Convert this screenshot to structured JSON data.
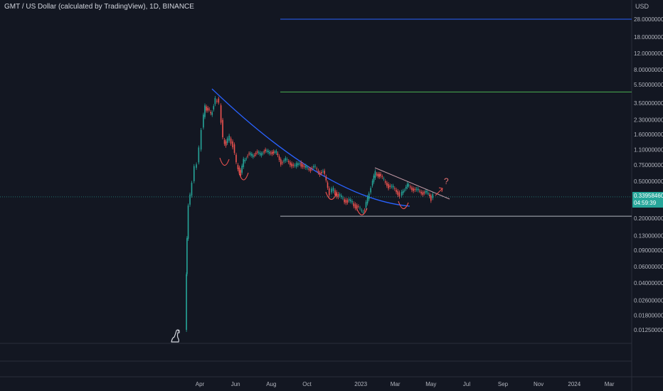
{
  "header": {
    "title": "GMT / US Dollar (calculated by TradingView), 1D, BINANCE",
    "unit": "USD"
  },
  "price_badge": {
    "price": "0.33958460",
    "countdown": "04:59:39",
    "color": "#26a69a"
  },
  "annotation": {
    "question_mark": "?"
  },
  "colors": {
    "background": "#131722",
    "up": "#26a69a",
    "down": "#ef5350",
    "resistance_high": "#2962ff",
    "resistance_mid": "#4caf50",
    "support": "#b2b5be",
    "curve": "#2962ff",
    "arcs": "#ef5350"
  },
  "chart_data": {
    "type": "line",
    "title": "GMT / US Dollar (calculated by TradingView), 1D, BINANCE",
    "ylabel": "USD",
    "yscale": "log",
    "ylim": [
      0.0095,
      34
    ],
    "y_ticks": [
      "28.00000000",
      "18.00000000",
      "12.00000000",
      "8.00000000",
      "5.50000000",
      "3.50000000",
      "2.30000000",
      "1.60000000",
      "1.10000000",
      "0.75000000",
      "0.50000000",
      "0.33958460",
      "0.20000000",
      "0.13000000",
      "0.09000000",
      "0.06000000",
      "0.04000000",
      "0.02600000",
      "0.01800000",
      "0.01250000"
    ],
    "x_ticks": [
      "Apr",
      "Jun",
      "Aug",
      "Oct",
      "2023",
      "Mar",
      "May",
      "Jul",
      "Sep",
      "Nov",
      "2024",
      "Mar"
    ],
    "series": [
      {
        "x": [
          "2022-03-09",
          "2022-03-10",
          "2022-03-12",
          "2022-03-15",
          "2022-03-18",
          "2022-03-22",
          "2022-03-26",
          "2022-03-30",
          "2022-04-03",
          "2022-04-07",
          "2022-04-12",
          "2022-04-17",
          "2022-04-22",
          "2022-04-27",
          "2022-04-30",
          "2022-05-03",
          "2022-05-07",
          "2022-05-10",
          "2022-05-13",
          "2022-05-18",
          "2022-05-24",
          "2022-05-30",
          "2022-06-05",
          "2022-06-12",
          "2022-06-17",
          "2022-06-24",
          "2022-07-01",
          "2022-07-08",
          "2022-07-15",
          "2022-07-22",
          "2022-07-29",
          "2022-08-05",
          "2022-08-12",
          "2022-08-20",
          "2022-08-28",
          "2022-09-05",
          "2022-09-13",
          "2022-09-21",
          "2022-09-29",
          "2022-10-07",
          "2022-10-15",
          "2022-10-23",
          "2022-10-31",
          "2022-11-08",
          "2022-11-12",
          "2022-11-18",
          "2022-11-26",
          "2022-12-04",
          "2022-12-12",
          "2022-12-20",
          "2022-12-28",
          "2023-01-05",
          "2023-01-10",
          "2023-01-15",
          "2023-01-21",
          "2023-01-28",
          "2023-02-04",
          "2023-02-12",
          "2023-02-20",
          "2023-02-28",
          "2023-03-08",
          "2023-03-12",
          "2023-03-17",
          "2023-03-24",
          "2023-04-01",
          "2023-04-09",
          "2023-04-17",
          "2023-04-24",
          "2023-05-01",
          "2023-05-04",
          "2023-05-08"
        ],
        "y": [
          0.0125,
          0.05,
          0.12,
          0.28,
          0.35,
          0.5,
          0.7,
          0.8,
          1.1,
          1.9,
          3.2,
          3.0,
          2.6,
          3.4,
          3.7,
          3.9,
          3.3,
          2.3,
          1.4,
          1.3,
          1.45,
          1.25,
          0.75,
          0.62,
          0.82,
          1.0,
          0.92,
          1.05,
          0.95,
          1.1,
          1.0,
          1.05,
          1.0,
          0.8,
          0.85,
          0.78,
          0.72,
          0.8,
          0.7,
          0.68,
          0.72,
          0.62,
          0.65,
          0.42,
          0.38,
          0.4,
          0.35,
          0.32,
          0.31,
          0.29,
          0.27,
          0.23,
          0.26,
          0.32,
          0.45,
          0.6,
          0.6,
          0.5,
          0.45,
          0.42,
          0.38,
          0.35,
          0.4,
          0.45,
          0.42,
          0.4,
          0.38,
          0.38,
          0.35,
          0.33,
          0.34
        ]
      }
    ],
    "levels": [
      28.0,
      4.6,
      0.21
    ],
    "annotations": [
      "?"
    ],
    "grid": false,
    "legend": "none"
  }
}
